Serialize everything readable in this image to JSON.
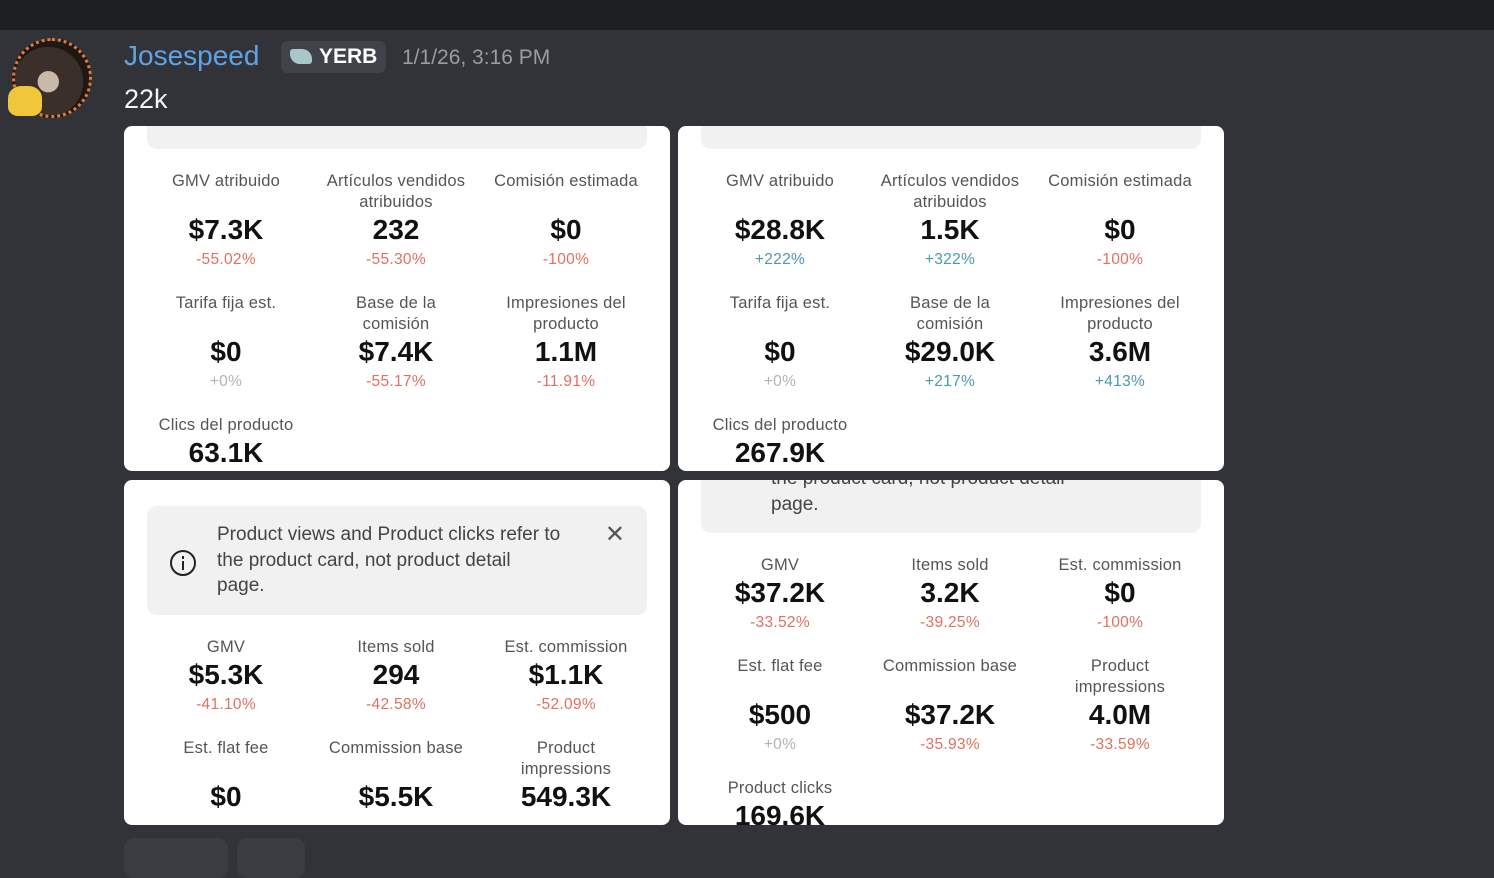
{
  "author": {
    "name": "Josespeed",
    "tag": "YERB",
    "timestamp": "1/1/26, 3:16 PM"
  },
  "message": {
    "text": "22k"
  },
  "attachments": [
    {
      "metrics": [
        {
          "label": "GMV atribuido",
          "value": "$7.3K",
          "change": "-55.02%",
          "trend": "down"
        },
        {
          "label": "Artículos vendidos\natribuidos",
          "value": "232",
          "change": "-55.30%",
          "trend": "down"
        },
        {
          "label": "Comisión estimada",
          "value": "$0",
          "change": "-100%",
          "trend": "down"
        },
        {
          "label": "Tarifa fija est.",
          "value": "$0",
          "change": "+0%",
          "trend": "flat"
        },
        {
          "label": "Base de la\ncomisión",
          "value": "$7.4K",
          "change": "-55.17%",
          "trend": "down"
        },
        {
          "label": "Impresiones del\nproducto",
          "value": "1.1M",
          "change": "-11.91%",
          "trend": "down"
        },
        {
          "label": "Clics del producto",
          "value": "63.1K"
        }
      ]
    },
    {
      "metrics": [
        {
          "label": "GMV atribuido",
          "value": "$28.8K",
          "change": "+222%",
          "trend": "up"
        },
        {
          "label": "Artículos vendidos\natribuidos",
          "value": "1.5K",
          "change": "+322%",
          "trend": "up"
        },
        {
          "label": "Comisión estimada",
          "value": "$0",
          "change": "-100%",
          "trend": "down"
        },
        {
          "label": "Tarifa fija est.",
          "value": "$0",
          "change": "+0%",
          "trend": "flat"
        },
        {
          "label": "Base de la\ncomisión",
          "value": "$29.0K",
          "change": "+217%",
          "trend": "up"
        },
        {
          "label": "Impresiones del\nproducto",
          "value": "3.6M",
          "change": "+413%",
          "trend": "up"
        },
        {
          "label": "Clics del producto",
          "value": "267.9K"
        }
      ]
    },
    {
      "note": "Product views and Product clicks refer to\nthe product card, not product detail\npage.",
      "metrics": [
        {
          "label": "GMV",
          "value": "$5.3K",
          "change": "-41.10%",
          "trend": "down"
        },
        {
          "label": "Items sold",
          "value": "294",
          "change": "-42.58%",
          "trend": "down"
        },
        {
          "label": "Est. commission",
          "value": "$1.1K",
          "change": "-52.09%",
          "trend": "down"
        },
        {
          "label": "Est. flat fee",
          "value": "$0"
        },
        {
          "label": "Commission base",
          "value": "$5.5K"
        },
        {
          "label": "Product\nimpressions",
          "value": "549.3K"
        }
      ]
    },
    {
      "note": "the product card, not product detail\npage.",
      "metrics": [
        {
          "label": "GMV",
          "value": "$37.2K",
          "change": "-33.52%",
          "trend": "down"
        },
        {
          "label": "Items sold",
          "value": "3.2K",
          "change": "-39.25%",
          "trend": "down"
        },
        {
          "label": "Est. commission",
          "value": "$0",
          "change": "-100%",
          "trend": "down"
        },
        {
          "label": "Est. flat fee",
          "value": "$500",
          "change": "+0%",
          "trend": "flat"
        },
        {
          "label": "Commission base",
          "value": "$37.2K",
          "change": "-35.93%",
          "trend": "down"
        },
        {
          "label": "Product\nimpressions",
          "value": "4.0M",
          "change": "-33.59%",
          "trend": "down"
        },
        {
          "label": "Product clicks",
          "value": "169.6K"
        }
      ]
    }
  ]
}
